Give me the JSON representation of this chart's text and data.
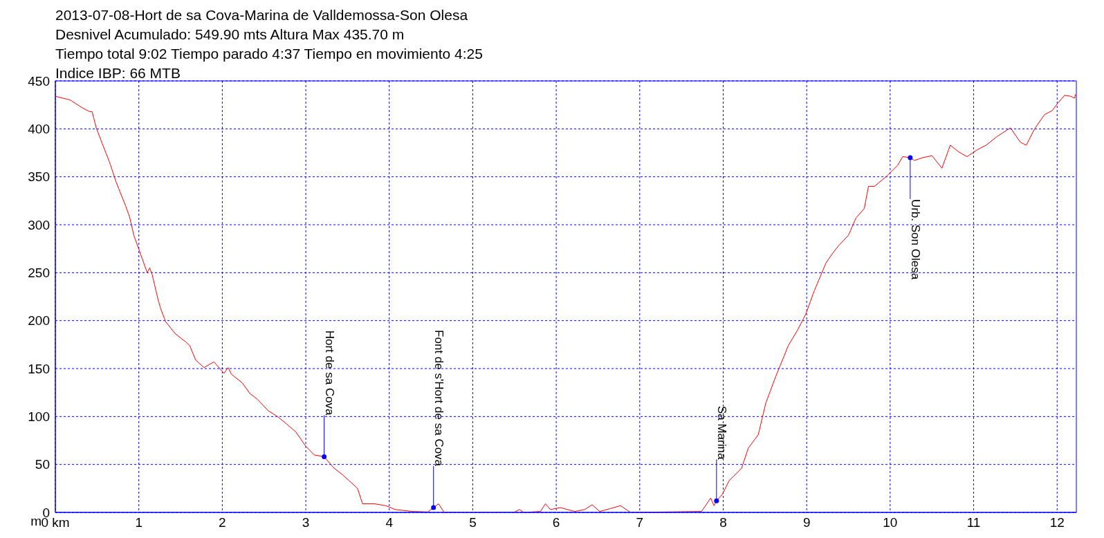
{
  "chart_data": {
    "type": "line",
    "title": "2013-07-08-Hort de sa Cova-Marina de Valldemossa-Son Olesa",
    "annotations": [
      "Desnivel Acumulado: 549.90 mts  Altura Max 435.70 m",
      "Tiempo total 9:02 Tiempo parado 4:37 Tiempo en movimiento 4:25",
      "Indice IBP: 66 MTB",
      {
        "text": "Hort de sa Cova",
        "x": 3.22,
        "y": 58
      },
      {
        "text": "Font de s'Hort de sa Cova",
        "x": 4.53,
        "y": 5
      },
      {
        "text": "Sa Marina",
        "x": 7.92,
        "y": 12
      },
      {
        "text": "Urb. Son Olesa",
        "x": 10.24,
        "y": 370
      }
    ],
    "ylabel": "m",
    "series": [
      {
        "color": "#ff0000",
        "x": [
          0,
          0.18,
          0.32,
          0.41,
          0.44,
          0.49,
          0.56,
          0.65,
          0.73,
          0.84,
          0.89,
          0.94,
          1.01,
          1.1,
          1.13,
          1.16,
          1.23,
          1.26,
          1.32,
          1.44,
          1.56,
          1.61,
          1.68,
          1.78,
          1.9,
          2.02,
          2.07,
          2.11,
          2.24,
          2.33,
          2.42,
          2.55,
          2.66,
          2.76,
          2.88,
          3.0,
          3.1,
          3.22,
          3.34,
          3.43,
          3.52,
          3.62,
          3.68,
          3.82,
          3.96,
          4.07,
          4.28,
          4.46,
          4.53,
          4.59,
          4.65,
          4.66,
          5.49,
          5.56,
          5.61,
          5.81,
          5.87,
          5.93,
          6.05,
          6.22,
          6.34,
          6.43,
          6.52,
          6.65,
          6.77,
          6.89,
          7.74,
          7.85,
          7.89,
          7.92,
          7.99,
          8.07,
          8.22,
          8.3,
          8.42,
          8.51,
          8.63,
          8.78,
          8.89,
          8.99,
          9.09,
          9.23,
          9.3,
          9.38,
          9.5,
          9.59,
          9.69,
          9.74,
          9.81,
          9.95,
          10.09,
          10.15,
          10.24,
          10.29,
          10.39,
          10.5,
          10.62,
          10.72,
          10.82,
          10.92,
          11.04,
          11.15,
          11.28,
          11.44,
          11.56,
          11.63,
          11.73,
          11.85,
          11.94,
          12.01,
          12.09,
          12.16,
          12.21,
          12.22
        ],
        "values": [
          434,
          430,
          422,
          418,
          418,
          401,
          385,
          365,
          344,
          320,
          308,
          289,
          272,
          250,
          255,
          248,
          222,
          213,
          199,
          186,
          178,
          174,
          159,
          151,
          157,
          145,
          151,
          144,
          135,
          124,
          118,
          106,
          100,
          93,
          84,
          69,
          60,
          58,
          46,
          40,
          33,
          25,
          9,
          9,
          7,
          3,
          1,
          0.5,
          5,
          9,
          1,
          0,
          0,
          3,
          0,
          1,
          9,
          3,
          5,
          1,
          3,
          8,
          1,
          4,
          7,
          0,
          1,
          15,
          7,
          12,
          19,
          33,
          46,
          67,
          81,
          114,
          142,
          174,
          190,
          207,
          231,
          260,
          269,
          278,
          289,
          307,
          317,
          340,
          340,
          350,
          362,
          371,
          370,
          367,
          370,
          372,
          359,
          383,
          376,
          371,
          378,
          383,
          392,
          401,
          386,
          383,
          400,
          415,
          419,
          427,
          435,
          434,
          432,
          436
        ]
      }
    ],
    "xlim": [
      0,
      12.23
    ],
    "xticks": [
      {
        "value": 0,
        "label": "0 km"
      },
      1,
      2,
      3,
      4,
      5,
      6,
      7,
      8,
      9,
      10,
      11,
      12
    ],
    "ylim": [
      0,
      450
    ],
    "yticks": [
      0,
      50,
      100,
      150,
      200,
      250,
      300,
      350,
      400,
      450
    ],
    "grid": true
  }
}
